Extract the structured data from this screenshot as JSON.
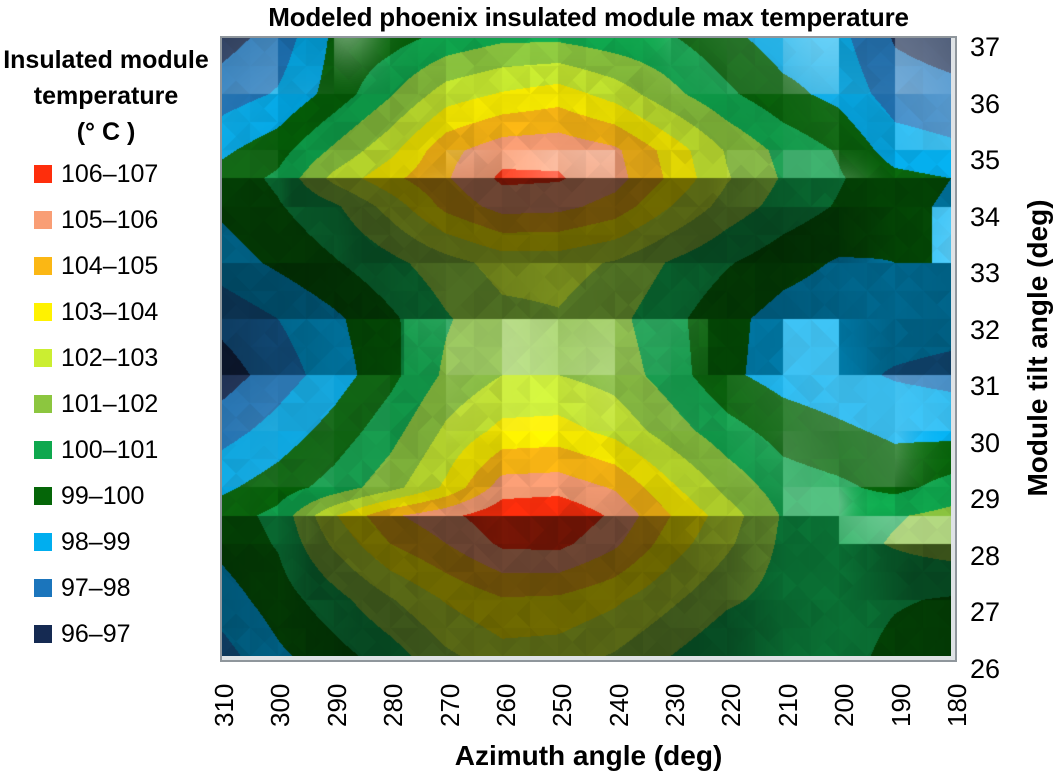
{
  "chart_data": {
    "type": "heatmap",
    "title": "Modeled phoenix insulated module max temperature",
    "xlabel": "Azimuth angle (deg)",
    "ylabel": "Module tilt angle (deg)",
    "legend_title_lines": [
      "Insulated module",
      "temperature",
      "(° C )"
    ],
    "x_range": [
      310,
      180
    ],
    "y_range": [
      37,
      26
    ],
    "x_ticks": [
      "310",
      "300",
      "290",
      "280",
      "270",
      "260",
      "250",
      "240",
      "230",
      "220",
      "210",
      "200",
      "190",
      "180"
    ],
    "y_ticks": [
      "37",
      "36",
      "35",
      "34",
      "33",
      "32",
      "31",
      "30",
      "29",
      "28",
      "27",
      "26"
    ],
    "legend_position": "left",
    "grid_lines": false,
    "frame_color": "#8f969c",
    "bands": [
      {
        "label": "106–107",
        "min": 106,
        "max": 107,
        "color": "#FE2E0C"
      },
      {
        "label": "105–106",
        "min": 105,
        "max": 106,
        "color": "#F99E75"
      },
      {
        "label": "104–105",
        "min": 104,
        "max": 105,
        "color": "#FBB714"
      },
      {
        "label": "103–104",
        "min": 103,
        "max": 104,
        "color": "#FFF200"
      },
      {
        "label": "102–103",
        "min": 102,
        "max": 103,
        "color": "#CBEE31"
      },
      {
        "label": "101–102",
        "min": 101,
        "max": 102,
        "color": "#8CC63F"
      },
      {
        "label": "100–101",
        "min": 100,
        "max": 101,
        "color": "#0FA84E"
      },
      {
        "label": "99–100",
        "min": 99,
        "max": 100,
        "color": "#056608"
      },
      {
        "label": "98–99",
        "min": 98,
        "max": 99,
        "color": "#00AEEF"
      },
      {
        "label": "97–98",
        "min": 97,
        "max": 98,
        "color": "#1B75BC"
      },
      {
        "label": "96–97",
        "min": 96,
        "max": 97,
        "color": "#152A52"
      }
    ],
    "grid": {
      "azimuths": [
        310,
        300,
        290,
        280,
        270,
        260,
        250,
        240,
        230,
        220,
        210,
        200,
        190,
        180
      ],
      "tilts": [
        37,
        36,
        35,
        34.5,
        34,
        33,
        32,
        31,
        30,
        29,
        28.5,
        28,
        27,
        26
      ],
      "values": [
        [
          96.6,
          97.4,
          99.2,
          99.6,
          100.3,
          100.8,
          100.8,
          100.4,
          100.1,
          99.3,
          98.5,
          98.3,
          96.9,
          96.5
        ],
        [
          97.5,
          98.1,
          99.4,
          100.9,
          102.5,
          103.1,
          103.5,
          102.6,
          101.3,
          100.2,
          99.3,
          98.7,
          97.5,
          97.3
        ],
        [
          98.8,
          99.6,
          101.2,
          102.7,
          104.7,
          105.6,
          105.7,
          105.2,
          103.6,
          101.9,
          100.7,
          99.9,
          98.5,
          98.2
        ],
        [
          99.4,
          100.2,
          102.3,
          103.7,
          104.9,
          106.2,
          106.1,
          105.4,
          103.8,
          102.1,
          100.9,
          100.1,
          99.3,
          99.0
        ],
        [
          99.2,
          99.9,
          100.8,
          102.4,
          104.3,
          105.4,
          105.3,
          104.6,
          103.0,
          101.6,
          100.6,
          99.9,
          99.2,
          98.9
        ],
        [
          98.5,
          99.2,
          99.9,
          100.7,
          101.6,
          102.4,
          102.4,
          101.9,
          100.9,
          100.1,
          99.4,
          98.9,
          99.0,
          99.0
        ],
        [
          97.3,
          98.0,
          98.8,
          99.8,
          100.9,
          101.7,
          101.9,
          101.3,
          100.3,
          99.3,
          98.6,
          98.3,
          98.5,
          98.4
        ],
        [
          96.5,
          97.5,
          98.5,
          99.7,
          101.2,
          102.0,
          102.0,
          101.6,
          100.5,
          99.2,
          98.6,
          98.3,
          97.9,
          97.7
        ],
        [
          97.6,
          98.4,
          99.4,
          100.6,
          102.2,
          103.3,
          103.4,
          102.7,
          101.5,
          100.4,
          99.6,
          99.2,
          98.8,
          98.7
        ],
        [
          98.8,
          99.5,
          100.4,
          101.6,
          103.2,
          105.5,
          105.6,
          104.9,
          103.2,
          101.7,
          100.5,
          100.2,
          99.7,
          100.4
        ],
        [
          99.5,
          100.3,
          102.9,
          104.8,
          105.7,
          106.7,
          106.9,
          105.8,
          104.0,
          102.5,
          100.9,
          100.6,
          100.9,
          101.3
        ],
        [
          99.3,
          100.1,
          102.2,
          104.0,
          105.0,
          106.2,
          106.3,
          105.2,
          103.5,
          102.2,
          100.8,
          100.6,
          101.1,
          101.5
        ],
        [
          98.5,
          99.5,
          100.6,
          101.9,
          103.1,
          103.9,
          103.8,
          103.2,
          102.2,
          101.2,
          100.6,
          100.5,
          100.1,
          99.9
        ],
        [
          97.6,
          98.8,
          99.6,
          100.5,
          101.8,
          102.6,
          102.5,
          101.9,
          101.0,
          100.1,
          100.2,
          100.4,
          99.7,
          99.3
        ]
      ]
    }
  }
}
